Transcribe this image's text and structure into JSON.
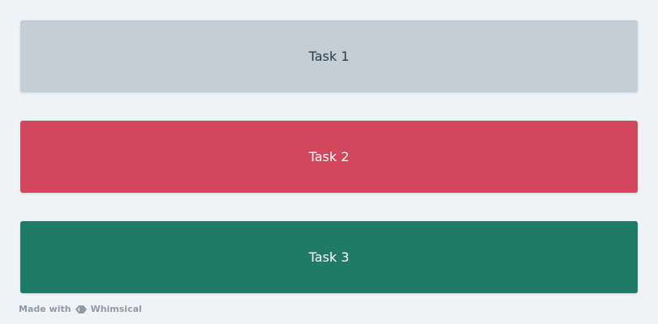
{
  "tasks": [
    {
      "label": "Task 1",
      "color": "#c3ced7",
      "text_color": "#2e3a46"
    },
    {
      "label": "Task 2",
      "color": "#d3475d",
      "text_color": "#ffffff"
    },
    {
      "label": "Task 3",
      "color": "#207a68",
      "text_color": "#ffffff"
    }
  ],
  "footer": {
    "made_with": "Made with",
    "brand": "Whimsical",
    "logo_icon": "whimsical-logo"
  }
}
